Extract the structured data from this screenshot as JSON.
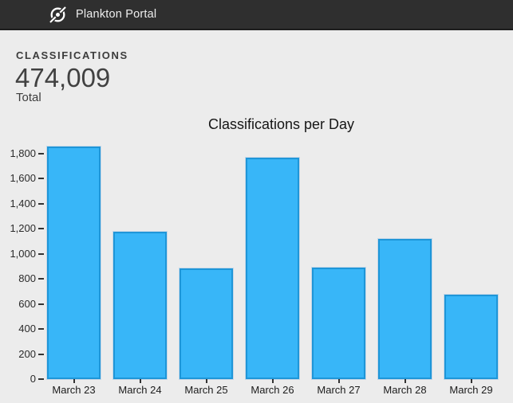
{
  "header": {
    "title": "Plankton Portal",
    "bg_color": "#2f2f2f",
    "logo_icon": "zooniverse-logo"
  },
  "stats": {
    "label": "CLASSIFICATIONS",
    "value": "474,009",
    "sublabel": "Total"
  },
  "chart_data": {
    "type": "bar",
    "title": "Classifications per Day",
    "categories": [
      "March 23",
      "March 24",
      "March 25",
      "March 26",
      "March 27",
      "March 28",
      "March 29"
    ],
    "values": [
      1860,
      1175,
      885,
      1770,
      890,
      1120,
      675
    ],
    "xlabel": "",
    "ylabel": "",
    "ylim": [
      0,
      1900
    ],
    "yticks": [
      "0",
      "200",
      "400",
      "600",
      "800",
      "1,000",
      "1,200",
      "1,400",
      "1,600",
      "1,800"
    ],
    "grid": false,
    "legend": "none",
    "bar_color": "#38b6f8",
    "bar_border_color": "#1e96d8"
  }
}
